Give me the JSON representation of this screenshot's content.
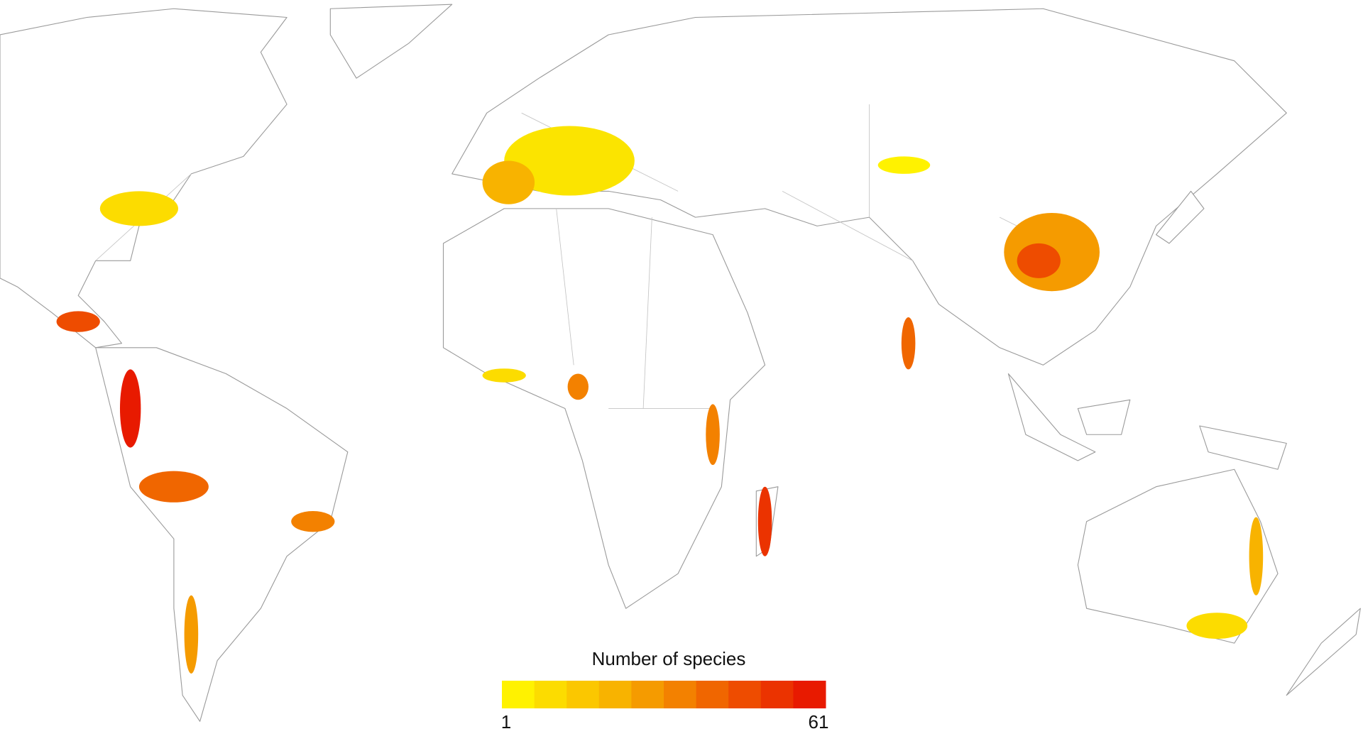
{
  "legend": {
    "title": "Number of species",
    "min": "1",
    "max": "61",
    "colors": [
      "#fff200",
      "#fcdc00",
      "#fbc700",
      "#f8b300",
      "#f59b00",
      "#f38100",
      "#f06600",
      "#ee4c00",
      "#eb3300",
      "#e81a00"
    ]
  }
}
